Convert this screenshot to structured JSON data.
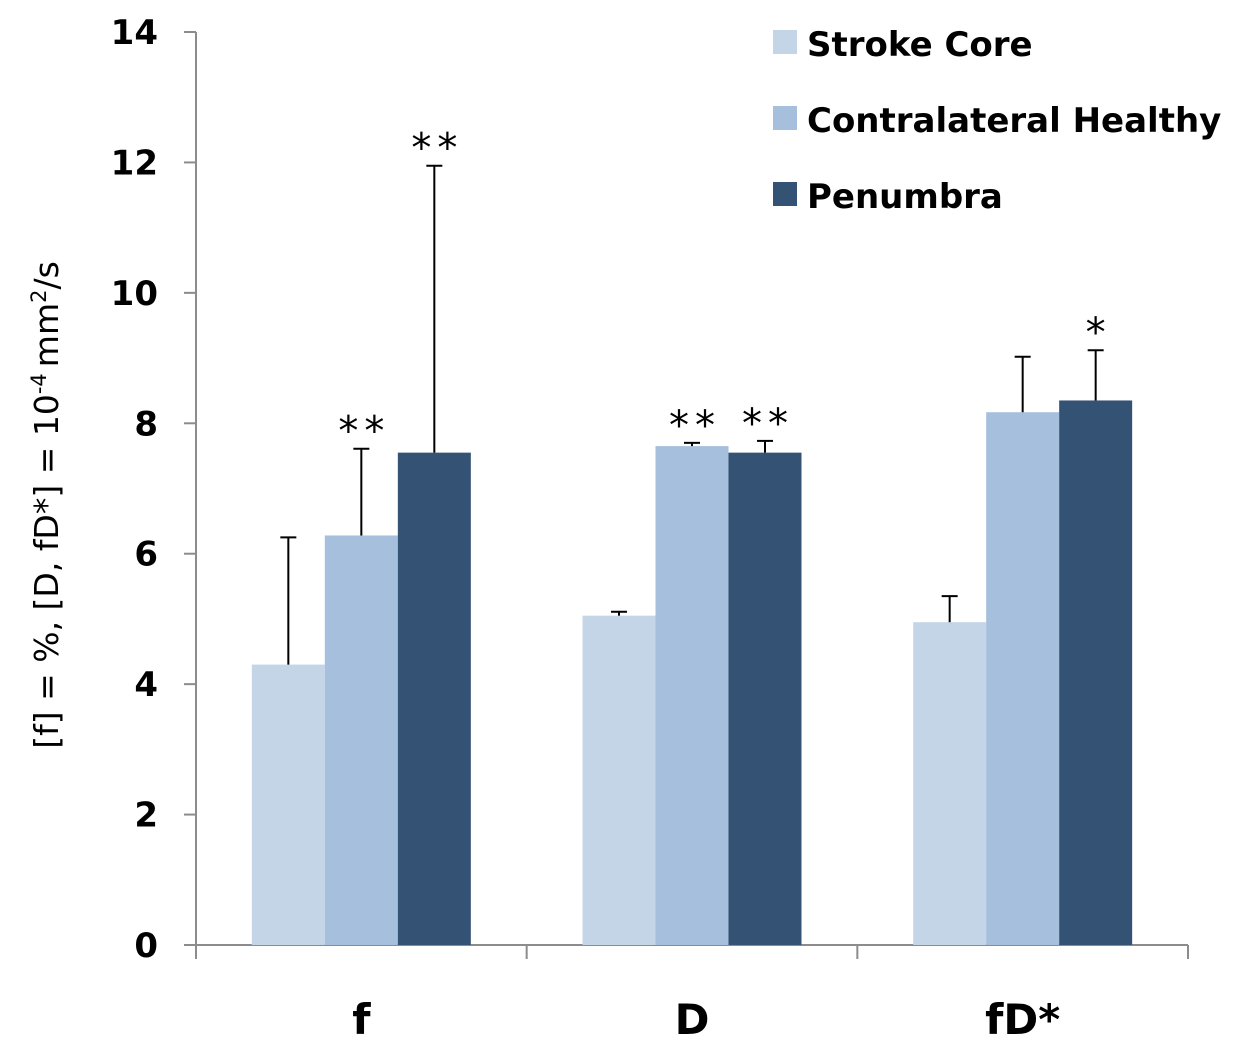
{
  "chart_data": {
    "type": "bar",
    "title": "",
    "xlabel": "",
    "ylabel": {
      "prefix": "[f] = %, [D, fD*] = 10",
      "exponent": "-4",
      "mid": "mm",
      "exponent2": "2",
      "suffix": "/s"
    },
    "ylim": [
      0,
      14
    ],
    "yticks": [
      "0",
      "2",
      "4",
      "6",
      "8",
      "10",
      "12",
      "14"
    ],
    "categories": [
      "f",
      "D",
      "fD*"
    ],
    "series": [
      {
        "name": "Stroke Core",
        "color": "#c5d5e8",
        "values": [
          4.3,
          5.05,
          4.95
        ],
        "errors": [
          1.95,
          0.06,
          0.4
        ],
        "significance": [
          "",
          "",
          ""
        ]
      },
      {
        "name": "Contralateral Healthy",
        "color": "#a6bfdd",
        "values": [
          6.28,
          7.65,
          8.17
        ],
        "errors": [
          1.33,
          0.05,
          0.85
        ],
        "significance": [
          "**",
          "**",
          ""
        ]
      },
      {
        "name": "Penumbra",
        "color": "#345374",
        "values": [
          7.55,
          7.55,
          8.35
        ],
        "errors": [
          4.4,
          0.18,
          0.77
        ],
        "significance": [
          "**",
          "**",
          "*"
        ]
      }
    ],
    "legend_position": "top-right",
    "grid": false
  }
}
